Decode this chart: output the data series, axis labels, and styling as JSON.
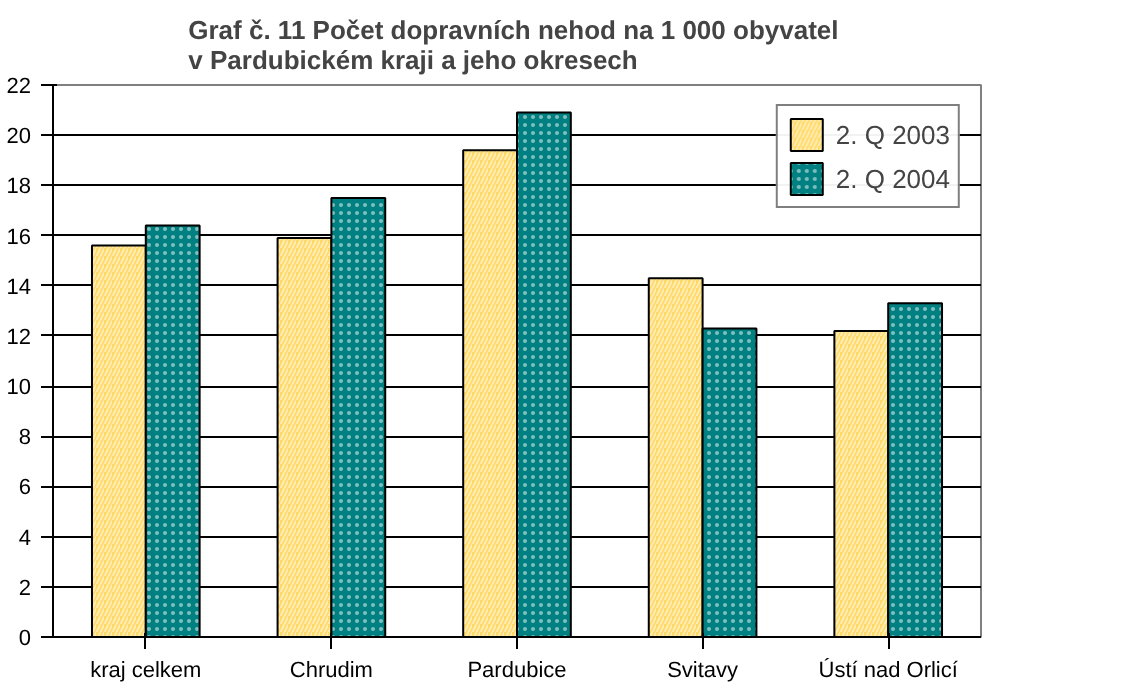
{
  "chart_data": {
    "type": "bar",
    "title": "Graf č. 11  Počet dopravních nehod na 1 000 obyvatel\nv Pardubickém kraji a jeho okresech",
    "categories": [
      "kraj celkem",
      "Chrudim",
      "Pardubice",
      "Svitavy",
      "Ústí nad Orlicí"
    ],
    "series": [
      {
        "name": "2. Q 2003",
        "color": "#ffd966",
        "values": [
          15.6,
          15.9,
          19.4,
          14.3,
          12.2
        ]
      },
      {
        "name": "2. Q 2004",
        "color": "#008080",
        "values": [
          16.4,
          17.5,
          20.9,
          12.3,
          13.3
        ]
      }
    ],
    "ylim": [
      0,
      22
    ],
    "yticks": [
      0,
      2,
      4,
      6,
      8,
      10,
      12,
      14,
      16,
      18,
      20,
      22
    ],
    "grid": "y",
    "legend": "top right"
  }
}
